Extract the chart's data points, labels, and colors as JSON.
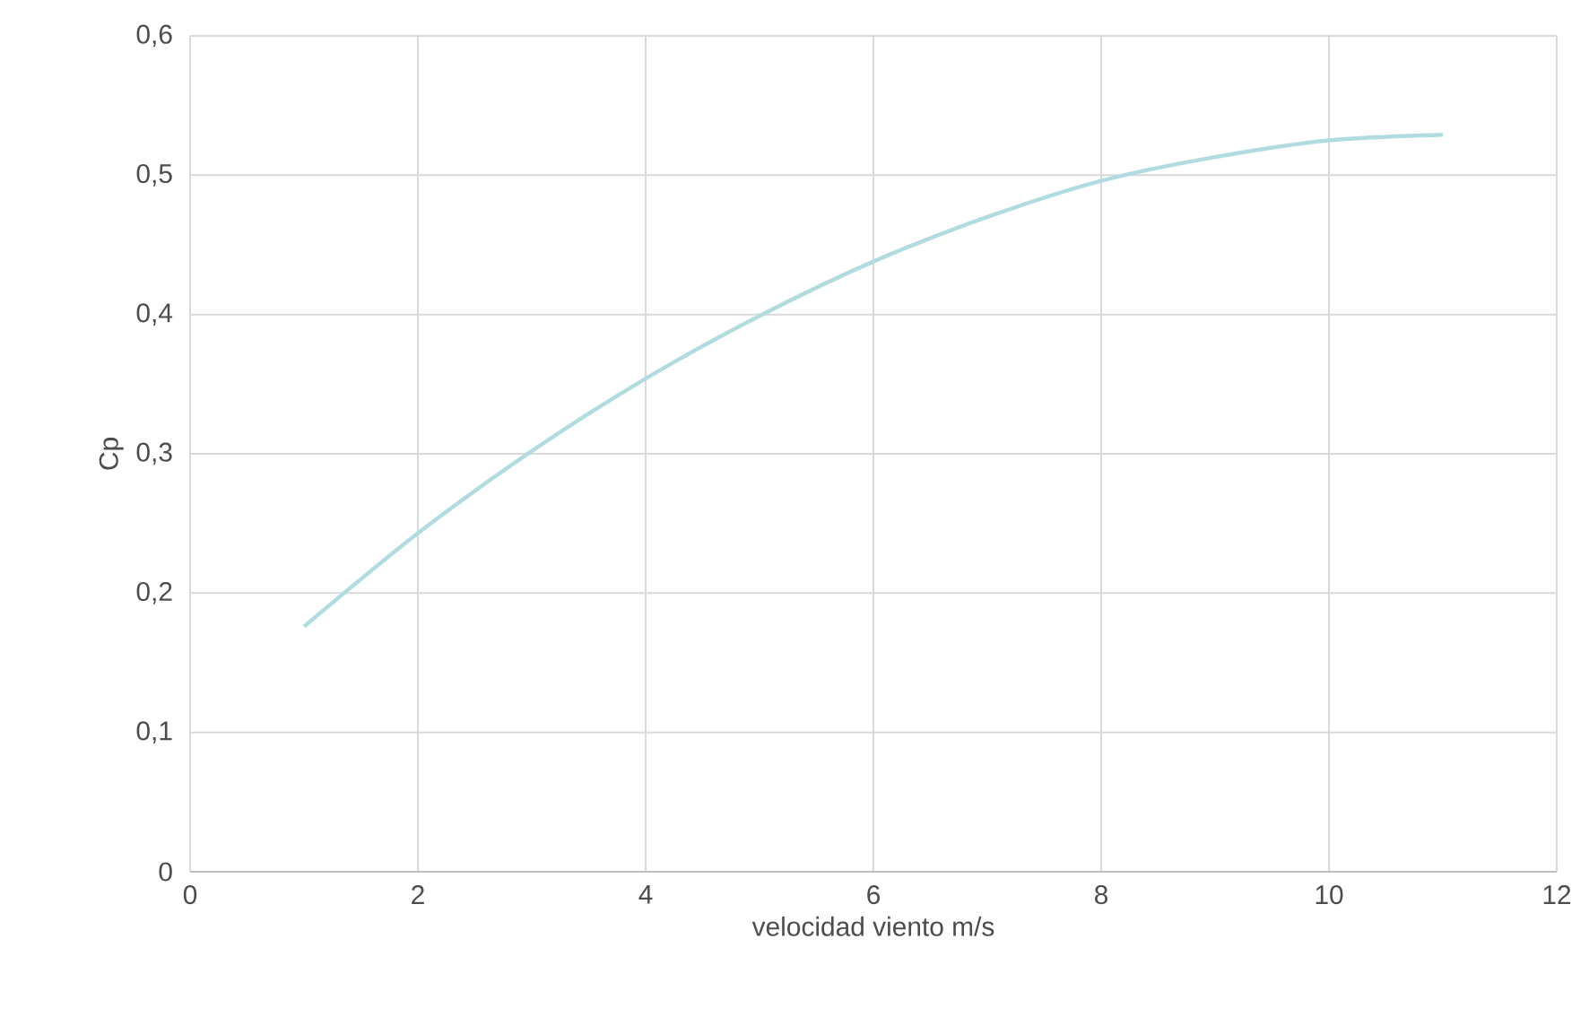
{
  "chart_data": {
    "type": "line",
    "xlabel": "velocidad viento m/s",
    "ylabel": "Cp",
    "x": [
      1,
      2,
      3,
      4,
      5,
      6,
      7,
      8,
      9,
      10,
      11
    ],
    "series": [
      {
        "color": "#b0dcdf",
        "values": [
          0.176,
          0.243,
          0.302,
          0.354,
          0.399,
          0.438,
          0.47,
          0.496,
          0.513,
          0.525,
          0.529
        ]
      }
    ],
    "xlim": [
      0,
      12
    ],
    "ylim": [
      0,
      0.6
    ],
    "xticks": [
      0,
      2,
      4,
      6,
      8,
      10,
      12
    ],
    "yticks": [
      0,
      {
        "value": 0.1,
        "label": "0,1"
      },
      {
        "value": 0.2,
        "label": "0,2"
      },
      {
        "value": 0.3,
        "label": "0,3"
      },
      {
        "value": 0.4,
        "label": "0,4"
      },
      {
        "value": 0.5,
        "label": "0,5"
      },
      {
        "value": 0.6,
        "label": "0,6"
      }
    ],
    "grid": true,
    "marker": "none",
    "line_style": "solid"
  }
}
